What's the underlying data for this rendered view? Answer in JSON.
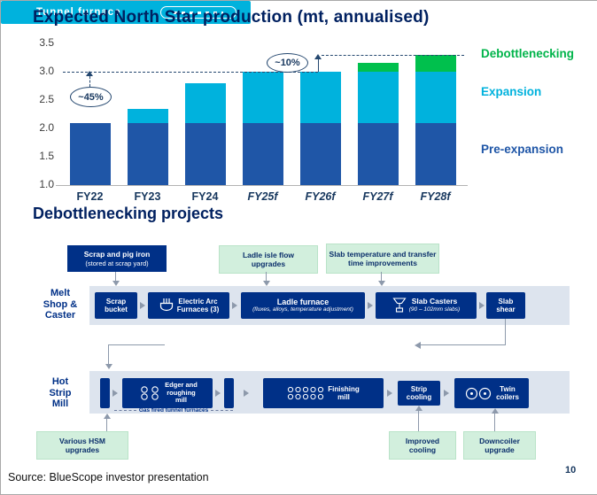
{
  "chart": {
    "title": "Expected North Star production (mt, annualised)"
  },
  "chart_data": {
    "type": "bar",
    "stacked": true,
    "title": "Expected North Star production (mt, annualised)",
    "categories": [
      "FY22",
      "FY23",
      "FY24",
      "FY25f",
      "FY26f",
      "FY27f",
      "FY28f"
    ],
    "italic_from_index": 3,
    "ylim": [
      1.0,
      3.5
    ],
    "yticks": [
      3.5,
      3.0,
      2.5,
      2.0,
      1.5,
      1.0
    ],
    "series": [
      {
        "name": "Pre-expansion",
        "color": "#1f56a7",
        "values": [
          2.1,
          2.1,
          2.1,
          2.1,
          2.1,
          2.1,
          2.1
        ]
      },
      {
        "name": "Expansion",
        "color": "#00b2dd",
        "values": [
          0,
          0.25,
          0.7,
          0.9,
          0.9,
          0.9,
          0.9
        ]
      },
      {
        "name": "Debottlenecking",
        "color": "#00c04d",
        "values": [
          0,
          0,
          0,
          0,
          0,
          0.15,
          0.3
        ]
      }
    ],
    "totals": [
      2.1,
      2.35,
      2.8,
      3.0,
      3.0,
      3.15,
      3.3
    ],
    "legend": [
      {
        "label": "Debottlenecking",
        "color": "#00b44a"
      },
      {
        "label": "Expansion",
        "color": "#00b2dd"
      },
      {
        "label": "Pre-expansion",
        "color": "#1f56a7"
      }
    ],
    "legend_position": "right",
    "grid": false,
    "reference_lines": [
      3.0,
      3.3
    ],
    "annotations": [
      {
        "label": "~45%"
      },
      {
        "label": "~10%"
      }
    ]
  },
  "diagram": {
    "title": "Debottlenecking projects",
    "callouts": {
      "scrap_pig_iron_title": "Scrap and pig iron",
      "scrap_pig_iron_sub": "(stored at scrap yard)",
      "ladle_isle": "Ladle isle flow\nupgrades",
      "slab_temperature": "Slab temperature and transfer\ntime improvements",
      "various_hsm": "Various HSM\nupgrades",
      "improved_cooling": "Improved\ncooling",
      "downcoiler": "Downcoiler\nupgrade"
    },
    "labels": {
      "melt_shop": "Melt\nShop &\nCaster",
      "hot_strip_mill": "Hot\nStrip\nMill",
      "gas_fired": "Gas fired tunnel furnaces"
    },
    "boxes": {
      "scrap_bucket": "Scrap\nbucket",
      "electric_arc": "Electric Arc\nFurnaces (3)",
      "ladle_furnace_title": "Ladle furnace",
      "ladle_furnace_sub": "(fluxes, alloys, temperature adjustment)",
      "slab_casters_title": "Slab Casters",
      "slab_casters_sub": "(90 – 102mm slabs)",
      "slab_shear": "Slab\nshear",
      "tunnel_furnace": "Tunnel furnace",
      "edger": "Edger and\nroughing\nmill",
      "finishing_mill": "Finishing\nmill",
      "strip_cooling": "Strip\ncooling",
      "twin_coilers": "Twin\ncoilers"
    },
    "icons": {
      "electric-arc-furnace-icon": "furnace vessel with three electrodes",
      "slab-caster-icon": "tundish pouring into mould",
      "tunnel-furnace-slab-icon": "slab outline with dashes",
      "roll-stand-icon": "paired mill rolls",
      "finishing-mill-rolls-icon": "row of mill roll stands",
      "twin-coiler-icon": "two coil spirals"
    }
  },
  "footer": {
    "source": "Source: BlueScope investor presentation",
    "page": "10"
  },
  "colors": {
    "navy_box": "#003087",
    "title_navy": "#002060",
    "cyan": "#00b2dd",
    "green": "#00c04d",
    "light_green": "#d2efdd",
    "band_gray": "#dde4ee"
  }
}
